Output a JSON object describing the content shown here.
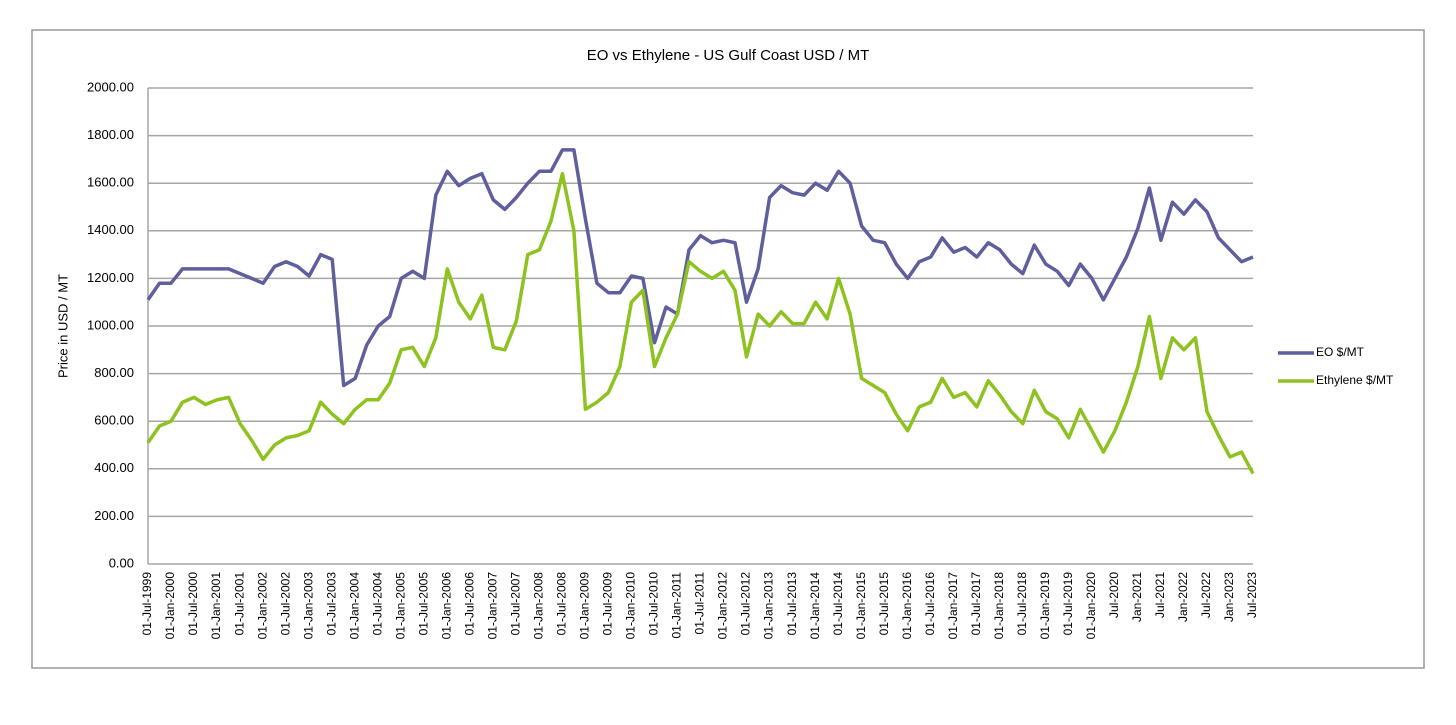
{
  "chart_data": {
    "type": "line",
    "title": "EO vs Ethylene -  US Gulf Coast USD / MT",
    "y_label": "Price  in USD / MT",
    "categories": [
      "01-Jul-1999",
      null,
      "01-Jan-2000",
      null,
      "01-Jul-2000",
      null,
      "01-Jan-2001",
      null,
      "01-Jul-2001",
      null,
      "01-Jan-2002",
      null,
      "01-Jul-2002",
      null,
      "01-Jan-2003",
      null,
      "01-Jul-2003",
      null,
      "01-Jan-2004",
      null,
      "01-Jul-2004",
      null,
      "01-Jan-2005",
      null,
      "01-Jul-2005",
      null,
      "01-Jan-2006",
      null,
      "01-Jul-2006",
      null,
      "01-Jan-2007",
      null,
      "01-Jul-2007",
      null,
      "01-Jan-2008",
      null,
      "01-Jul-2008",
      null,
      "01-Jan-2009",
      null,
      "01-Jul-2009",
      null,
      "01-Jan-2010",
      null,
      "01-Jul-2010",
      null,
      "01-Jan-2011",
      null,
      "01-Jul-2011",
      null,
      "01-Jan-2012",
      null,
      "01-Jul-2012",
      null,
      "01-Jan-2013",
      null,
      "01-Jul-2013",
      null,
      "01-Jan-2014",
      null,
      "01-Jul-2014",
      null,
      "01-Jan-2015",
      null,
      "01-Jul-2015",
      null,
      "01-Jan-2016",
      null,
      "01-Jul-2016",
      null,
      "01-Jan-2017",
      null,
      "01-Jul-2017",
      null,
      "01-Jan-2018",
      null,
      "01-Jul-2018",
      null,
      "01-Jan-2019",
      null,
      "01-Jul-2019",
      null,
      "01-Jan-2020",
      null,
      "Jul-2020",
      null,
      "Jan-2021",
      null,
      "Jul-2021",
      null,
      "Jan-2022",
      null,
      "Jul-2022",
      null,
      "Jan-2023",
      null,
      "Jul-2023"
    ],
    "series": [
      {
        "name": "EO $/MT",
        "color": "#5f5f9e",
        "values": [
          1110,
          1180,
          1180,
          1240,
          1240,
          1240,
          1240,
          1240,
          1220,
          1200,
          1180,
          1250,
          1270,
          1250,
          1210,
          1300,
          1280,
          750,
          780,
          920,
          1000,
          1040,
          1200,
          1230,
          1200,
          1550,
          1650,
          1590,
          1620,
          1640,
          1530,
          1490,
          1540,
          1600,
          1650,
          1650,
          1740,
          1740,
          1450,
          1180,
          1140,
          1140,
          1210,
          1200,
          930,
          1080,
          1050,
          1320,
          1380,
          1350,
          1360,
          1350,
          1100,
          1240,
          1540,
          1590,
          1560,
          1550,
          1600,
          1570,
          1650,
          1600,
          1420,
          1360,
          1350,
          1260,
          1200,
          1270,
          1290,
          1370,
          1310,
          1330,
          1290,
          1350,
          1320,
          1260,
          1220,
          1340,
          1260,
          1230,
          1170,
          1260,
          1200,
          1110,
          1200,
          1290,
          1410,
          1580,
          1360,
          1520,
          1470,
          1530,
          1480,
          1370,
          1320,
          1270,
          1290
        ]
      },
      {
        "name": "Ethylene $/MT",
        "color": "#8dc21f",
        "values": [
          510,
          580,
          600,
          680,
          700,
          670,
          690,
          700,
          590,
          520,
          440,
          500,
          530,
          540,
          560,
          680,
          630,
          590,
          650,
          690,
          690,
          760,
          900,
          910,
          830,
          950,
          1240,
          1100,
          1030,
          1130,
          910,
          900,
          1020,
          1300,
          1320,
          1440,
          1640,
          1400,
          650,
          680,
          720,
          830,
          1100,
          1150,
          830,
          950,
          1050,
          1270,
          1230,
          1200,
          1230,
          1150,
          870,
          1050,
          1000,
          1060,
          1010,
          1010,
          1100,
          1030,
          1200,
          1050,
          780,
          750,
          720,
          630,
          560,
          660,
          680,
          780,
          700,
          720,
          660,
          770,
          710,
          640,
          590,
          730,
          640,
          610,
          530,
          650,
          560,
          470,
          560,
          680,
          830,
          1040,
          780,
          950,
          900,
          950,
          640,
          540,
          450,
          470,
          380
        ]
      }
    ],
    "ylim": [
      0,
      2000
    ],
    "yticks": [
      {
        "value": 0,
        "label": "0.00"
      },
      {
        "value": 200,
        "label": "200.00"
      },
      {
        "value": 400,
        "label": "400.00"
      },
      {
        "value": 600,
        "label": "600.00"
      },
      {
        "value": 800,
        "label": "800.00"
      },
      {
        "value": 1000,
        "label": "1000.00"
      },
      {
        "value": 1200,
        "label": "1200.00"
      },
      {
        "value": 1400,
        "label": "1400.00"
      },
      {
        "value": 1600,
        "label": "1600.00"
      },
      {
        "value": 1800,
        "label": "1800.00"
      },
      {
        "value": 2000,
        "label": "2000.00"
      }
    ],
    "grid": true,
    "legend": "right"
  }
}
